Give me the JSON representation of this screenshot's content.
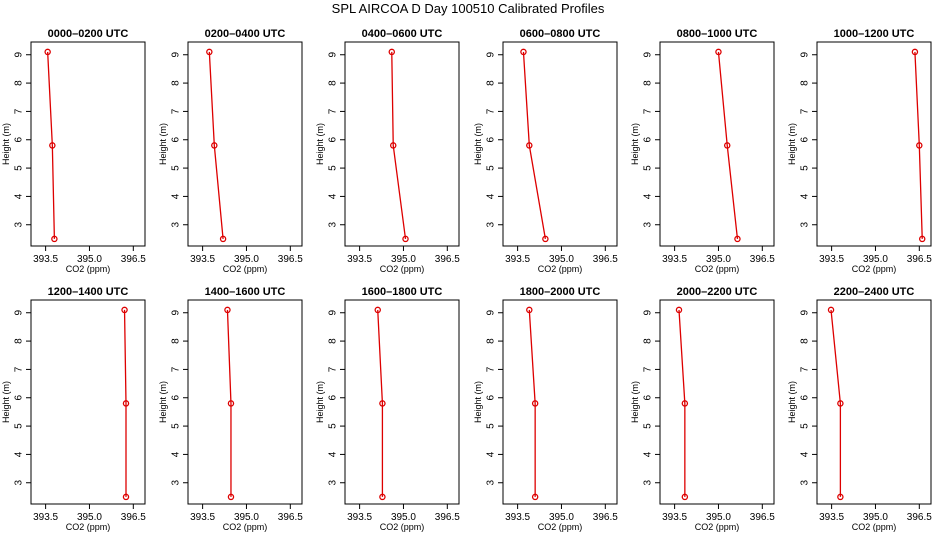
{
  "title": "SPL AIRCOA D  Day 100510  Calibrated Profiles",
  "xlabel": "CO2 (ppm)",
  "ylabel": "Height (m)",
  "x_ticks": [
    "393.5",
    "395.0",
    "396.5"
  ],
  "y_ticks": [
    "3",
    "4",
    "5",
    "6",
    "7",
    "8",
    "9"
  ],
  "colors": {
    "series": "#dd0000",
    "axis": "#000000"
  },
  "chart_data": {
    "type": "line",
    "xlim": [
      393.0,
      396.9
    ],
    "ylim": [
      2.25,
      9.45
    ],
    "x_tick_values": [
      393.5,
      395.0,
      396.5
    ],
    "y_tick_values": [
      3,
      4,
      5,
      6,
      7,
      8,
      9
    ],
    "heights": [
      9.1,
      5.8,
      2.5
    ],
    "panels": [
      {
        "title": "0000–0200 UTC",
        "values": [
          393.57,
          393.73,
          393.8
        ]
      },
      {
        "title": "0200–0400 UTC",
        "values": [
          393.73,
          393.9,
          394.2
        ]
      },
      {
        "title": "0400–0600 UTC",
        "values": [
          394.6,
          394.65,
          395.07
        ]
      },
      {
        "title": "0600–0800 UTC",
        "values": [
          393.7,
          393.9,
          394.45
        ]
      },
      {
        "title": "0800–1000 UTC",
        "values": [
          395.0,
          395.3,
          395.65
        ]
      },
      {
        "title": "1000–1200 UTC",
        "values": [
          396.35,
          396.5,
          396.6
        ]
      },
      {
        "title": "1200–1400 UTC",
        "values": [
          396.2,
          396.25,
          396.25
        ]
      },
      {
        "title": "1400–1600 UTC",
        "values": [
          394.35,
          394.47,
          394.47
        ]
      },
      {
        "title": "1600–1800 UTC",
        "values": [
          394.12,
          394.28,
          394.28
        ]
      },
      {
        "title": "1800–2000 UTC",
        "values": [
          393.9,
          394.1,
          394.1
        ]
      },
      {
        "title": "2000–2200 UTC",
        "values": [
          393.65,
          393.85,
          393.85
        ]
      },
      {
        "title": "2200–2400 UTC",
        "values": [
          393.48,
          393.8,
          393.8
        ]
      }
    ]
  }
}
